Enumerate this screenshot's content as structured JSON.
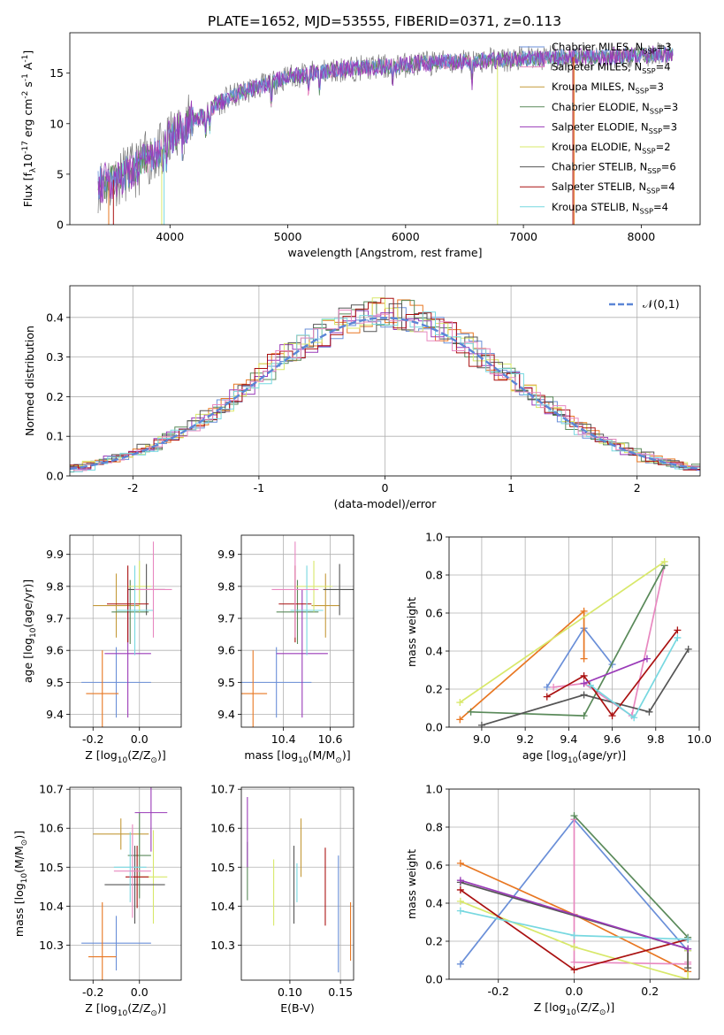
{
  "figure_title": "PLATE=1652, MJD=53555, FIBERID=0371, z=0.113",
  "model_colors": [
    "#6a8fd8",
    "#e87722",
    "#c49a3a",
    "#5a8a5a",
    "#9a3ab8",
    "#d8e86a",
    "#555555",
    "#aa1111",
    "#77d8e0",
    "#e888c0"
  ],
  "chart_data": [
    {
      "id": "spectrum",
      "type": "line",
      "xlabel": "wavelength [Angstrom, rest frame]",
      "ylabel": "Flux [f$_\\lambda$10$^{-17}$ erg cm$^{-2}$ s$^{-1}$ A$^{-1}$]",
      "xlim": [
        3150,
        8500
      ],
      "ylim": [
        0,
        19
      ],
      "xticks": [
        4000,
        5000,
        6000,
        7000,
        8000
      ],
      "yticks": [
        0,
        5,
        10,
        15
      ],
      "legend_location": "right",
      "series": [
        {
          "name": "Chabrier MILES, N$_{SSP}$=3",
          "color": "#6a8fd8"
        },
        {
          "name": "Salpeter MILES, N$_{SSP}$=4",
          "color": "#e888c0"
        },
        {
          "name": "Kroupa MILES, N$_{SSP}$=3",
          "color": "#c49a3a"
        },
        {
          "name": "Chabrier ELODIE, N$_{SSP}$=3",
          "color": "#5a8a5a"
        },
        {
          "name": "Salpeter ELODIE, N$_{SSP}$=3",
          "color": "#9a3ab8"
        },
        {
          "name": "Kroupa ELODIE, N$_{SSP}$=2",
          "color": "#d8e86a"
        },
        {
          "name": "Chabrier STELIB, N$_{SSP}$=6",
          "color": "#555555"
        },
        {
          "name": "Salpeter STELIB, N$_{SSP}$=4",
          "color": "#aa1111"
        },
        {
          "name": "Kroupa STELIB, N$_{SSP}$=4",
          "color": "#77d8e0"
        }
      ],
      "data_continuum": {
        "x": [
          3400,
          3500,
          3600,
          3700,
          3800,
          3900,
          4000,
          4100,
          4200,
          4300,
          4400,
          4500,
          4600,
          4700,
          4800,
          4900,
          5000,
          5200,
          5400,
          5600,
          5800,
          6000,
          6200,
          6400,
          6600,
          6800,
          7000,
          7200,
          7400,
          7600,
          7800,
          8000,
          8200
        ],
        "y": [
          4.0,
          4.3,
          5.0,
          5.3,
          6.5,
          7.0,
          8.5,
          9.5,
          10.5,
          10.8,
          12.0,
          12.5,
          13.0,
          13.5,
          13.8,
          14.2,
          14.6,
          15.0,
          15.3,
          15.5,
          15.6,
          15.8,
          16.0,
          16.1,
          16.2,
          16.3,
          16.4,
          16.5,
          16.6,
          16.6,
          16.7,
          16.8,
          16.9
        ]
      }
    },
    {
      "id": "residuals",
      "type": "line",
      "xlabel": "(data-model)/error",
      "ylabel": "Normed distribution",
      "xlim": [
        -2.5,
        2.5
      ],
      "ylim": [
        0,
        0.48
      ],
      "xticks": [
        -2,
        -1,
        0,
        1,
        2
      ],
      "yticks": [
        0.0,
        0.1,
        0.2,
        0.3,
        0.4
      ],
      "grid": true,
      "legend_location": "upper right",
      "legend": "$\\mathcal{N}(0,1)$",
      "reference_curve": "standard normal, peak 0.399 at 0"
    },
    {
      "id": "age_vs_Z",
      "type": "scatter",
      "xlabel": "Z [log$_{10}$(Z/Z$_\\odot$)]",
      "ylabel": "age  [log$_{10}$(age/yr)]",
      "xlim": [
        -0.3,
        0.18
      ],
      "ylim": [
        9.36,
        9.96
      ],
      "xticks": [
        -0.2,
        0.0
      ],
      "yticks": [
        9.4,
        9.5,
        9.6,
        9.7,
        9.8,
        9.9
      ],
      "grid": true,
      "points": [
        {
          "x": -0.1,
          "xerr": 0.15,
          "y": 9.5,
          "yerr": 0.11
        },
        {
          "x": -0.16,
          "xerr": 0.07,
          "y": 9.465,
          "yerr": 0.135
        },
        {
          "x": -0.1,
          "xerr": 0.1,
          "y": 9.74,
          "yerr": 0.1
        },
        {
          "x": -0.04,
          "xerr": 0.08,
          "y": 9.72,
          "yerr": 0.1
        },
        {
          "x": -0.05,
          "xerr": 0.1,
          "y": 9.59,
          "yerr": 0.2
        },
        {
          "x": 0.0,
          "xerr": 0.05,
          "y": 9.8,
          "yerr": 0.08
        },
        {
          "x": 0.03,
          "xerr": 0.08,
          "y": 9.79,
          "yerr": 0.08
        },
        {
          "x": -0.05,
          "xerr": 0.09,
          "y": 9.745,
          "yerr": 0.12
        },
        {
          "x": -0.02,
          "xerr": 0.08,
          "y": 9.725,
          "yerr": 0.14
        },
        {
          "x": 0.06,
          "xerr": 0.08,
          "y": 9.79,
          "yerr": 0.15
        }
      ]
    },
    {
      "id": "age_vs_mass",
      "type": "scatter",
      "xlabel": "mass [log$_{10}$(M/M$_\\odot$)]",
      "ylabel": "",
      "xlim": [
        10.22,
        10.7
      ],
      "ylim": [
        9.36,
        9.96
      ],
      "xticks": [
        10.4,
        10.6
      ],
      "yticks": [
        9.4,
        9.5,
        9.6,
        9.7,
        9.8,
        9.9
      ],
      "grid": true,
      "points": [
        {
          "x": 10.37,
          "xerr": 0.15,
          "y": 9.5,
          "yerr": 0.11
        },
        {
          "x": 10.27,
          "xerr": 0.06,
          "y": 9.465,
          "yerr": 0.135
        },
        {
          "x": 10.58,
          "xerr": 0.06,
          "y": 9.74,
          "yerr": 0.1
        },
        {
          "x": 10.46,
          "xerr": 0.09,
          "y": 9.72,
          "yerr": 0.1
        },
        {
          "x": 10.48,
          "xerr": 0.11,
          "y": 9.59,
          "yerr": 0.2
        },
        {
          "x": 10.53,
          "xerr": 0.08,
          "y": 9.8,
          "yerr": 0.08
        },
        {
          "x": 10.64,
          "xerr": 0.07,
          "y": 9.79,
          "yerr": 0.08
        },
        {
          "x": 10.45,
          "xerr": 0.07,
          "y": 9.745,
          "yerr": 0.12
        },
        {
          "x": 10.5,
          "xerr": 0.07,
          "y": 9.725,
          "yerr": 0.14
        },
        {
          "x": 10.45,
          "xerr": 0.1,
          "y": 9.79,
          "yerr": 0.15
        }
      ]
    },
    {
      "id": "mass_weight_vs_age",
      "type": "line",
      "xlabel": "age  [log$_{10}$(age/yr)]",
      "ylabel": "mass weight",
      "xlim": [
        8.85,
        10.0
      ],
      "ylim": [
        0,
        1.0
      ],
      "xticks": [
        9.0,
        9.2,
        9.4,
        9.6,
        9.8,
        10.0
      ],
      "yticks": [
        0.0,
        0.2,
        0.4,
        0.6,
        0.8,
        1.0
      ],
      "grid": true,
      "series": [
        {
          "x": [
            9.3,
            9.47,
            9.6
          ],
          "y": [
            0.21,
            0.52,
            0.33
          ]
        },
        {
          "x": [
            8.9,
            9.47,
            9.47
          ],
          "y": [
            0.04,
            0.61,
            0.36
          ]
        },
        {
          "x": [
            9.33,
            9.47,
            9.69,
            9.84
          ],
          "y": [
            0.21,
            0.23,
            0.06,
            0.85
          ]
        },
        {
          "x": [
            8.95,
            9.47,
            9.84
          ],
          "y": [
            0.08,
            0.06,
            0.85
          ]
        },
        {
          "x": [
            8.9,
            9.84
          ],
          "y": [
            0.13,
            0.87
          ]
        },
        {
          "x": [
            9.0,
            9.47,
            9.77,
            9.95
          ],
          "y": [
            0.01,
            0.17,
            0.08,
            0.41
          ]
        },
        {
          "x": [
            9.3,
            9.47,
            9.6,
            9.9
          ],
          "y": [
            0.16,
            0.27,
            0.06,
            0.51
          ]
        },
        {
          "x": [
            9.5,
            9.7,
            9.9
          ],
          "y": [
            0.22,
            0.05,
            0.47
          ]
        },
        {
          "x": [
            9.47,
            9.76
          ],
          "y": [
            0.23,
            0.36
          ]
        }
      ]
    },
    {
      "id": "mass_vs_Z",
      "type": "scatter",
      "xlabel": "Z [log$_{10}$(Z/Z$_\\odot$)]",
      "ylabel": "mass [log$_{10}$(M/M$_\\odot$)]",
      "xlim": [
        -0.3,
        0.18
      ],
      "ylim": [
        10.21,
        10.705
      ],
      "xticks": [
        -0.2,
        0.0
      ],
      "yticks": [
        10.3,
        10.4,
        10.5,
        10.6,
        10.7
      ],
      "grid": true,
      "points": [
        {
          "x": -0.1,
          "xerr": 0.15,
          "y": 10.305,
          "yerr": 0.07
        },
        {
          "x": -0.16,
          "xerr": 0.06,
          "y": 10.27,
          "yerr": 0.14
        },
        {
          "x": -0.08,
          "xerr": 0.12,
          "y": 10.585,
          "yerr": 0.04
        },
        {
          "x": 0.0,
          "xerr": 0.05,
          "y": 10.53,
          "yerr": 0.11
        },
        {
          "x": 0.05,
          "xerr": 0.07,
          "y": 10.64,
          "yerr": 0.1
        },
        {
          "x": 0.06,
          "xerr": 0.06,
          "y": 10.475,
          "yerr": 0.12
        },
        {
          "x": -0.02,
          "xerr": 0.13,
          "y": 10.455,
          "yerr": 0.1
        },
        {
          "x": -0.01,
          "xerr": 0.05,
          "y": 10.475,
          "yerr": 0.08
        },
        {
          "x": -0.04,
          "xerr": 0.07,
          "y": 10.5,
          "yerr": 0.09
        },
        {
          "x": -0.03,
          "xerr": 0.08,
          "y": 10.49,
          "yerr": 0.12
        }
      ]
    },
    {
      "id": "mass_vs_EBV",
      "type": "scatter",
      "xlabel": "E(B-V)",
      "ylabel": "",
      "xlim": [
        0.052,
        0.163
      ],
      "ylim": [
        10.21,
        10.705
      ],
      "xticks": [
        0.1,
        0.15
      ],
      "yticks": [
        10.3,
        10.4,
        10.5,
        10.6,
        10.7
      ],
      "grid": true,
      "points": [
        {
          "x": 0.148,
          "y": 10.38,
          "yerr": 0.15
        },
        {
          "x": 0.16,
          "y": 10.335,
          "yerr": 0.075
        },
        {
          "x": 0.111,
          "y": 10.55,
          "yerr": 0.075
        },
        {
          "x": 0.058,
          "y": 10.49,
          "yerr": 0.075
        },
        {
          "x": 0.058,
          "y": 10.59,
          "yerr": 0.09
        },
        {
          "x": 0.084,
          "y": 10.435,
          "yerr": 0.085
        },
        {
          "x": 0.104,
          "y": 10.455,
          "yerr": 0.1
        },
        {
          "x": 0.135,
          "y": 10.45,
          "yerr": 0.1
        },
        {
          "x": 0.107,
          "y": 10.46,
          "yerr": 0.05
        }
      ]
    },
    {
      "id": "mass_weight_vs_Z",
      "type": "line",
      "xlabel": "Z [log$_{10}$(Z/Z$_\\odot$)]",
      "ylabel": "mass weight",
      "xlim": [
        -0.33,
        0.33
      ],
      "ylim": [
        0,
        1.0
      ],
      "xticks": [
        -0.2,
        0.0,
        0.2
      ],
      "yticks": [
        0.0,
        0.2,
        0.4,
        0.6,
        0.8,
        1.0
      ],
      "grid": true,
      "series": [
        {
          "x": [
            -0.3,
            0.0,
            0.3
          ],
          "y": [
            0.08,
            0.84,
            0.15
          ]
        },
        {
          "x": [
            -0.3,
            0.0,
            0.3
          ],
          "y": [
            0.61,
            0.34,
            0.04
          ]
        },
        {
          "x": [
            0.0,
            0.0,
            0.3,
            0.3
          ],
          "y": [
            0.84,
            0.09,
            0.08,
            0.09
          ]
        },
        {
          "x": [
            0.0,
            0.3
          ],
          "y": [
            0.86,
            0.22
          ]
        },
        {
          "x": [
            -0.3,
            0.0,
            0.3,
            0.3
          ],
          "y": [
            0.41,
            0.17,
            0.0,
            0.15
          ]
        },
        {
          "x": [
            -0.3,
            0.3,
            0.3
          ],
          "y": [
            0.51,
            0.16,
            0.06
          ]
        },
        {
          "x": [
            -0.3,
            0.0,
            0.3
          ],
          "y": [
            0.47,
            0.05,
            0.21
          ]
        },
        {
          "x": [
            -0.3,
            0.0,
            0.3
          ],
          "y": [
            0.36,
            0.23,
            0.21
          ]
        },
        {
          "x": [
            -0.3,
            0.3
          ],
          "y": [
            0.52,
            0.16
          ]
        }
      ]
    }
  ]
}
